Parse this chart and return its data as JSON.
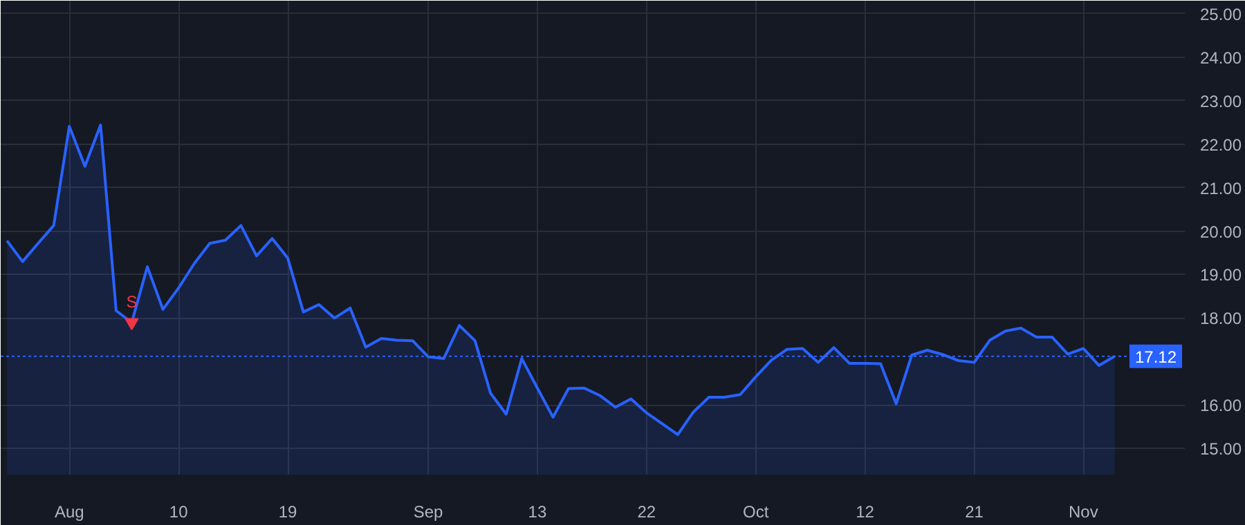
{
  "chart_data": {
    "type": "area",
    "categories": [
      null,
      null,
      null,
      null,
      "Aug",
      null,
      null,
      null,
      null,
      null,
      null,
      "10",
      null,
      null,
      null,
      null,
      null,
      null,
      "19",
      null,
      null,
      null,
      null,
      null,
      null,
      null,
      null,
      "Sep",
      null,
      null,
      null,
      null,
      null,
      null,
      "13",
      null,
      null,
      null,
      null,
      null,
      null,
      "22",
      null,
      null,
      null,
      null,
      null,
      null,
      "Oct",
      null,
      null,
      null,
      null,
      null,
      null,
      "12",
      null,
      null,
      null,
      null,
      null,
      null,
      "21",
      null,
      null,
      null,
      null,
      null,
      null,
      "Nov",
      null,
      null
    ],
    "series": [
      {
        "color": "#2962ff",
        "values": [
          19.78,
          19.3,
          19.72,
          20.13,
          22.41,
          21.49,
          22.44,
          18.17,
          17.9,
          19.18,
          18.2,
          18.69,
          19.25,
          19.72,
          19.79,
          20.13,
          19.43,
          19.83,
          19.38,
          18.14,
          18.31,
          18.0,
          18.23,
          17.33,
          17.53,
          17.49,
          17.48,
          17.11,
          17.07,
          17.83,
          17.48,
          16.27,
          15.79,
          17.07,
          16.39,
          15.72,
          16.38,
          16.39,
          16.22,
          15.95,
          16.14,
          15.82,
          15.57,
          15.32,
          15.84,
          16.18,
          16.18,
          16.24,
          16.65,
          17.03,
          17.28,
          17.3,
          16.98,
          17.32,
          16.96,
          16.96,
          16.95,
          16.03,
          17.15,
          17.26,
          17.16,
          17.02,
          16.98,
          17.49,
          17.7,
          17.77,
          17.56,
          17.56,
          17.17,
          17.3,
          16.91,
          17.12
        ]
      },
      {
        "type": "scatter",
        "color": "#f23645",
        "marker": "triangle",
        "values": [
          null,
          null,
          null,
          null,
          null,
          null,
          null,
          null,
          17.9,
          null,
          null,
          null,
          null,
          null,
          null,
          null,
          null,
          null,
          null,
          null,
          null,
          null,
          null,
          null,
          null,
          null,
          null,
          null,
          null,
          null,
          null,
          null,
          null,
          null,
          null,
          null,
          null,
          null,
          null,
          null,
          null,
          null,
          null,
          null,
          null,
          null,
          null,
          null,
          null,
          null,
          null,
          null,
          null,
          null,
          null,
          null,
          null,
          null,
          null,
          null,
          null,
          null,
          null,
          null,
          null,
          null,
          null,
          null,
          null,
          null,
          null,
          null
        ],
        "value_labels": [
          null,
          null,
          null,
          null,
          null,
          null,
          null,
          null,
          "S",
          null,
          null,
          null,
          null,
          null,
          null,
          null,
          null,
          null,
          null,
          null,
          null,
          null,
          null,
          null,
          null,
          null,
          null,
          null,
          null,
          null,
          null,
          null,
          null,
          null,
          null,
          null,
          null,
          null,
          null,
          null,
          null,
          null,
          null,
          null,
          null,
          null,
          null,
          null,
          null,
          null,
          null,
          null,
          null,
          null,
          null,
          null,
          null,
          null,
          null,
          null,
          null,
          null,
          null,
          null,
          null,
          null,
          null,
          null,
          null,
          null,
          null,
          null
        ]
      }
    ],
    "ylim": [
      14.4,
      25.3
    ],
    "yticks": [
      {
        "value": 15,
        "label": "15.00"
      },
      {
        "value": 16,
        "label": "16.00"
      },
      {
        "value": 18,
        "label": "18.00"
      },
      {
        "value": 19,
        "label": "19.00"
      },
      {
        "value": 20,
        "label": "20.00"
      },
      {
        "value": 21,
        "label": "21.00"
      },
      {
        "value": 22,
        "label": "22.00"
      },
      {
        "value": 23,
        "label": "23.00"
      },
      {
        "value": 24,
        "label": "24.00"
      },
      {
        "value": 25,
        "label": "25.00"
      }
    ],
    "ref_lines": [
      {
        "axis": "y",
        "value": 17.12,
        "label": "17.12",
        "color": "#2962ff",
        "line_style": "dotted"
      }
    ],
    "grid": true
  }
}
